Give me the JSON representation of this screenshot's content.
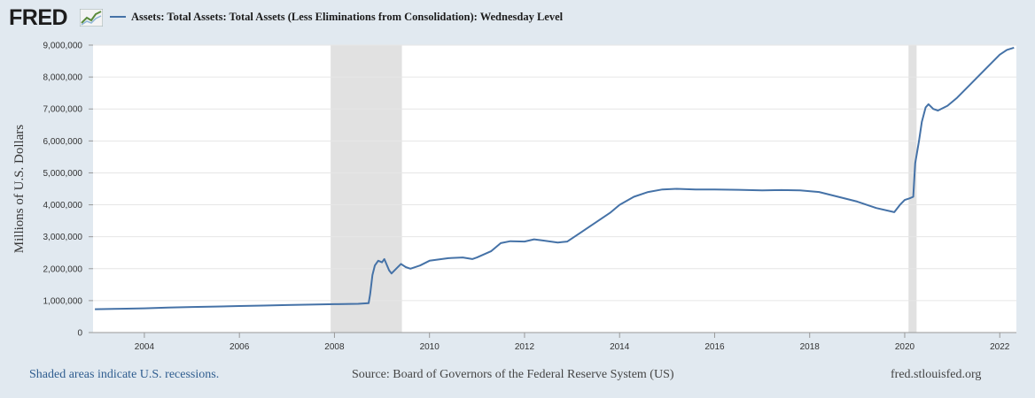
{
  "header": {
    "logo_text": "FRED",
    "logo_icon": "line-chart-icon"
  },
  "colors": {
    "series": "#4572a7",
    "background": "#e1e9f0",
    "plot_bg": "#ffffff",
    "recession": "#e1e1e1"
  },
  "chart_data": {
    "type": "line",
    "title": "",
    "xlabel": "",
    "ylabel": "Millions of U.S. Dollars",
    "xlim": [
      2002.92,
      2022.35
    ],
    "ylim": [
      0,
      9000000
    ],
    "grid": true,
    "legend_position": "top-left",
    "x_ticks": [
      2004,
      2006,
      2008,
      2010,
      2012,
      2014,
      2016,
      2018,
      2020,
      2022
    ],
    "y_ticks": [
      0,
      1000000,
      2000000,
      3000000,
      4000000,
      5000000,
      6000000,
      7000000,
      8000000,
      9000000
    ],
    "y_tick_labels": [
      "0",
      "1,000,000",
      "2,000,000",
      "3,000,000",
      "4,000,000",
      "5,000,000",
      "6,000,000",
      "7,000,000",
      "8,000,000",
      "9,000,000"
    ],
    "recessions": [
      [
        2007.92,
        2009.42
      ],
      [
        2020.08,
        2020.25
      ]
    ],
    "series": [
      {
        "name": "Assets: Total Assets: Total Assets (Less Eliminations from Consolidation): Wednesday Level",
        "color": "#4572a7",
        "points": [
          [
            2002.96,
            730000
          ],
          [
            2003.5,
            745000
          ],
          [
            2004.0,
            760000
          ],
          [
            2004.5,
            780000
          ],
          [
            2005.0,
            800000
          ],
          [
            2005.5,
            815000
          ],
          [
            2006.0,
            830000
          ],
          [
            2006.5,
            845000
          ],
          [
            2007.0,
            860000
          ],
          [
            2007.5,
            875000
          ],
          [
            2008.0,
            890000
          ],
          [
            2008.5,
            900000
          ],
          [
            2008.72,
            920000
          ],
          [
            2008.75,
            1200000
          ],
          [
            2008.8,
            1800000
          ],
          [
            2008.85,
            2100000
          ],
          [
            2008.92,
            2250000
          ],
          [
            2009.0,
            2200000
          ],
          [
            2009.05,
            2300000
          ],
          [
            2009.15,
            1950000
          ],
          [
            2009.2,
            1850000
          ],
          [
            2009.3,
            2000000
          ],
          [
            2009.4,
            2150000
          ],
          [
            2009.5,
            2050000
          ],
          [
            2009.6,
            2000000
          ],
          [
            2009.8,
            2100000
          ],
          [
            2010.0,
            2250000
          ],
          [
            2010.4,
            2330000
          ],
          [
            2010.7,
            2350000
          ],
          [
            2010.9,
            2300000
          ],
          [
            2011.0,
            2350000
          ],
          [
            2011.3,
            2550000
          ],
          [
            2011.5,
            2800000
          ],
          [
            2011.7,
            2860000
          ],
          [
            2012.0,
            2850000
          ],
          [
            2012.2,
            2920000
          ],
          [
            2012.4,
            2880000
          ],
          [
            2012.7,
            2820000
          ],
          [
            2012.9,
            2850000
          ],
          [
            2013.2,
            3150000
          ],
          [
            2013.5,
            3450000
          ],
          [
            2013.8,
            3750000
          ],
          [
            2014.0,
            4000000
          ],
          [
            2014.3,
            4250000
          ],
          [
            2014.6,
            4400000
          ],
          [
            2014.9,
            4480000
          ],
          [
            2015.2,
            4500000
          ],
          [
            2015.6,
            4480000
          ],
          [
            2016.0,
            4480000
          ],
          [
            2016.5,
            4470000
          ],
          [
            2017.0,
            4450000
          ],
          [
            2017.4,
            4460000
          ],
          [
            2017.8,
            4450000
          ],
          [
            2018.2,
            4400000
          ],
          [
            2018.6,
            4250000
          ],
          [
            2019.0,
            4100000
          ],
          [
            2019.4,
            3900000
          ],
          [
            2019.78,
            3770000
          ],
          [
            2019.9,
            4000000
          ],
          [
            2020.0,
            4150000
          ],
          [
            2020.1,
            4200000
          ],
          [
            2020.18,
            4250000
          ],
          [
            2020.22,
            5300000
          ],
          [
            2020.3,
            6000000
          ],
          [
            2020.36,
            6600000
          ],
          [
            2020.44,
            7050000
          ],
          [
            2020.5,
            7150000
          ],
          [
            2020.6,
            7000000
          ],
          [
            2020.7,
            6950000
          ],
          [
            2020.9,
            7100000
          ],
          [
            2021.1,
            7350000
          ],
          [
            2021.4,
            7800000
          ],
          [
            2021.7,
            8250000
          ],
          [
            2022.0,
            8700000
          ],
          [
            2022.15,
            8850000
          ],
          [
            2022.3,
            8920000
          ]
        ]
      }
    ]
  },
  "footer": {
    "recession_note": "Shaded areas indicate U.S. recessions.",
    "source": "Source: Board of Governors of the Federal Reserve System (US)",
    "site": "fred.stlouisfed.org"
  }
}
